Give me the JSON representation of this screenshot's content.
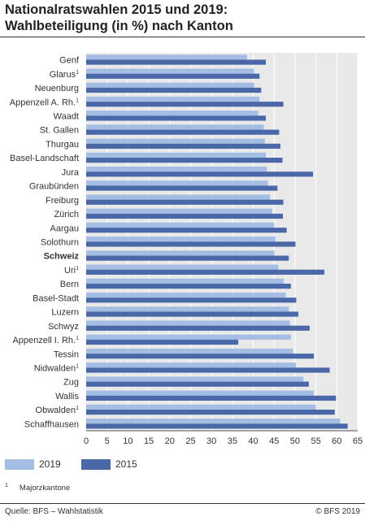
{
  "header": {
    "title_line1": "Nationalratswahlen 2015 und 2019:",
    "title_line2": "Wahlbeteiligung (in %) nach Kanton"
  },
  "legend": {
    "items": [
      {
        "label": "2019",
        "color": "#a3bde3"
      },
      {
        "label": "2015",
        "color": "#4a67a8"
      }
    ]
  },
  "footnote": {
    "marker": "1",
    "text": "Majorzkantone"
  },
  "footer": {
    "source": "Quelle: BFS – Wahlstatistik",
    "copyright": "© BFS 2019"
  },
  "chart_data": {
    "type": "bar",
    "orientation": "horizontal",
    "title": "Nationalratswahlen 2015 und 2019: Wahlbeteiligung (in %) nach Kanton",
    "categories": [
      "Genf",
      "Glarus",
      "Neuenburg",
      "Appenzell A. Rh.",
      "Waadt",
      "St. Gallen",
      "Thurgau",
      "Basel-Landschaft",
      "Jura",
      "Graubünden",
      "Freiburg",
      "Zürich",
      "Aargau",
      "Solothurn",
      "Schweiz",
      "Uri",
      "Bern",
      "Basel-Stadt",
      "Luzern",
      "Schwyz",
      "Appenzell I. Rh.",
      "Tessin",
      "Nidwalden",
      "Zug",
      "Wallis",
      "Obwalden",
      "Schaffhausen"
    ],
    "footnote_flags": [
      false,
      true,
      false,
      true,
      false,
      false,
      false,
      false,
      false,
      false,
      false,
      false,
      false,
      false,
      false,
      true,
      false,
      false,
      false,
      false,
      true,
      false,
      true,
      false,
      false,
      true,
      false
    ],
    "bold_categories": [
      "Schweiz"
    ],
    "series": [
      {
        "name": "2019",
        "color": "#a3bde3",
        "values": [
          38.5,
          40.2,
          40.2,
          41.5,
          41.2,
          42.5,
          42.8,
          43.0,
          43.3,
          43.5,
          44.0,
          44.5,
          45.0,
          45.3,
          45.1,
          46.0,
          47.3,
          47.8,
          48.5,
          48.8,
          49.0,
          49.5,
          50.2,
          52.0,
          54.5,
          55.0,
          60.8
        ]
      },
      {
        "name": "2015",
        "color": "#4a67a8",
        "values": [
          43.0,
          41.5,
          41.9,
          47.2,
          43.0,
          46.2,
          46.5,
          47.0,
          54.3,
          45.8,
          47.2,
          47.1,
          48.0,
          50.1,
          48.5,
          57.0,
          49.0,
          50.3,
          50.8,
          53.5,
          36.4,
          54.5,
          58.3,
          53.3,
          59.8,
          59.5,
          62.6
        ]
      }
    ],
    "xlim": [
      0,
      65
    ],
    "xticks": [
      0,
      5,
      10,
      15,
      20,
      25,
      30,
      35,
      40,
      45,
      50,
      55,
      60,
      65
    ],
    "grid": true,
    "legend_position": "bottom-left"
  }
}
